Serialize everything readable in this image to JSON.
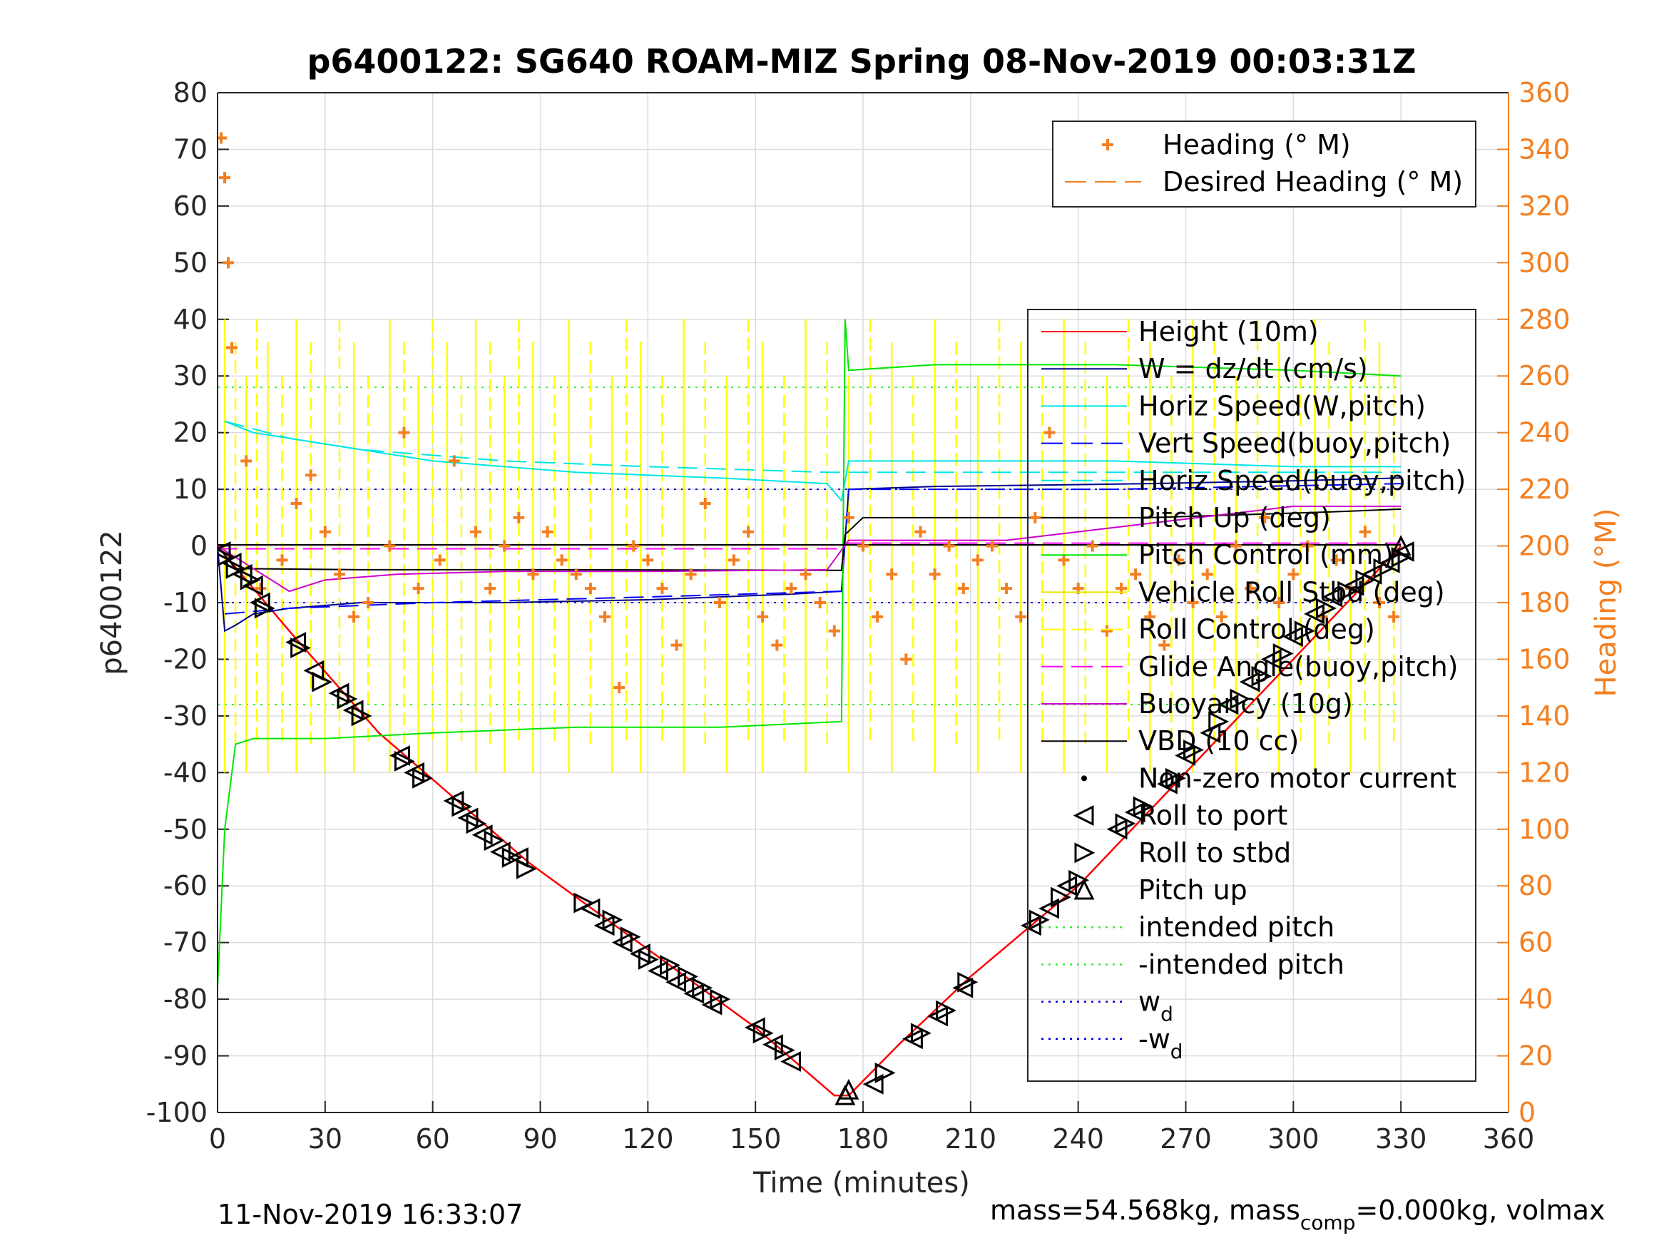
{
  "chart_data": {
    "type": "line",
    "title": "p6400122: SG640 ROAM-MIZ Spring 08-Nov-2019 00:03:31Z",
    "xlabel": "Time (minutes)",
    "ylabel_left": "p6400122",
    "ylabel_right": "Heading (°M)",
    "xlim": [
      0,
      360
    ],
    "ylim_left": [
      -100,
      80
    ],
    "ylim_right": [
      0,
      360
    ],
    "grid": true,
    "xticks": [
      "0",
      "30",
      "60",
      "90",
      "120",
      "150",
      "180",
      "210",
      "240",
      "270",
      "300",
      "330",
      "360"
    ],
    "yticks_left": [
      "-100",
      "-90",
      "-80",
      "-70",
      "-60",
      "-50",
      "-40",
      "-30",
      "-20",
      "-10",
      "0",
      "10",
      "20",
      "30",
      "40",
      "50",
      "60",
      "70",
      "80"
    ],
    "yticks_right": [
      "0",
      "20",
      "40",
      "60",
      "80",
      "100",
      "120",
      "140",
      "160",
      "180",
      "200",
      "220",
      "240",
      "260",
      "280",
      "300",
      "320",
      "340",
      "360"
    ],
    "legend_top": [
      {
        "label": "Heading (° M)",
        "color": "#f47f20",
        "style": "marker-plus"
      },
      {
        "label": "Desired Heading (° M)",
        "color": "#f47f20",
        "style": "dashed"
      }
    ],
    "legend_main": [
      {
        "label": "Height (10m)",
        "color": "#ff0000",
        "style": "solid"
      },
      {
        "label": "W = dz/dt (cm/s)",
        "color": "#00008b",
        "style": "solid"
      },
      {
        "label": "Horiz Speed(W,pitch)",
        "color": "#00e5e5",
        "style": "solid"
      },
      {
        "label": "Vert Speed(buoy,pitch)",
        "color": "#0000ff",
        "style": "dashed"
      },
      {
        "label": "Horiz Speed(buoy,pitch)",
        "color": "#00e5e5",
        "style": "dashed"
      },
      {
        "label": "Pitch Up (deg)",
        "color": "#000000",
        "style": "solid"
      },
      {
        "label": "Pitch Control (mm)",
        "color": "#00e600",
        "style": "solid"
      },
      {
        "label": "Vehicle Roll Stbd (deg)",
        "color": "#e6e600",
        "style": "solid"
      },
      {
        "label": "Roll Control (deg)",
        "color": "#ffff00",
        "style": "dashed"
      },
      {
        "label": "Glide Angle(buoy,pitch)",
        "color": "#ff00ff",
        "style": "dashed"
      },
      {
        "label": "Buoyancy (10g)",
        "color": "#cc00cc",
        "style": "solid"
      },
      {
        "label": "VBD (10 cc)",
        "color": "#000000",
        "style": "solid"
      },
      {
        "label": "Non-zero motor current",
        "color": "#000000",
        "style": "dot"
      },
      {
        "label": "Roll to port",
        "color": "#000000",
        "style": "tri-left"
      },
      {
        "label": "Roll to stbd",
        "color": "#000000",
        "style": "tri-right"
      },
      {
        "label": "Pitch up",
        "color": "#000000",
        "style": "tri-up"
      },
      {
        "label": "intended pitch",
        "color": "#33ee33",
        "style": "dotted"
      },
      {
        "label": "-intended pitch",
        "color": "#33ee33",
        "style": "dotted"
      },
      {
        "label": "w",
        "sub": "d",
        "color": "#0000cc",
        "style": "dotted"
      },
      {
        "label": "-w",
        "sub": "d",
        "color": "#0000cc",
        "style": "dotted"
      }
    ],
    "reference_lines": {
      "intended_pitch": 28,
      "w_d": 10
    },
    "series": [
      {
        "name": "Height (10m)",
        "color": "#ff0000",
        "x": [
          0,
          20,
          45,
          87,
          150,
          172,
          176,
          190,
          210,
          240,
          270,
          300,
          330
        ],
        "y": [
          0,
          -15,
          -33,
          -56,
          -85,
          -97,
          -97,
          -88,
          -76,
          -60,
          -40,
          -20,
          0
        ]
      },
      {
        "name": "W = dz/dt (cm/s)",
        "color": "#00008b",
        "x": [
          0,
          2,
          5,
          10,
          20,
          40,
          80,
          120,
          160,
          174,
          176,
          200,
          260,
          300,
          330
        ],
        "y": [
          0,
          -15,
          -14,
          -12,
          -11,
          -10,
          -10,
          -9.5,
          -8.5,
          -8,
          10,
          10.5,
          11,
          11.5,
          12
        ]
      },
      {
        "name": "Horiz Speed(W,pitch)",
        "color": "#00e5e5",
        "x": [
          2,
          10,
          20,
          40,
          60,
          100,
          140,
          170,
          174,
          176,
          200,
          250,
          300,
          330
        ],
        "y": [
          22,
          20,
          19,
          17,
          15,
          13,
          12,
          11,
          8,
          15,
          15,
          15,
          14,
          14
        ]
      },
      {
        "name": "Horiz Speed(buoy,pitch)",
        "color": "#00e5e5",
        "x": [
          2,
          20,
          40,
          80,
          120,
          170,
          176,
          250,
          330
        ],
        "y": [
          22,
          19,
          17,
          15,
          14,
          13,
          13,
          13,
          13
        ]
      },
      {
        "name": "Vert Speed(buoy,pitch)",
        "color": "#0000ff",
        "x": [
          2,
          20,
          60,
          120,
          174,
          176,
          250,
          330
        ],
        "y": [
          -12,
          -11,
          -10,
          -9,
          -8,
          10,
          10,
          11
        ]
      },
      {
        "name": "Pitch Control (mm)",
        "color": "#00e600",
        "x": [
          0,
          2,
          5,
          10,
          30,
          60,
          100,
          140,
          174,
          175,
          176,
          200,
          250,
          300,
          330
        ],
        "y": [
          -78,
          -50,
          -35,
          -34,
          -34,
          -33,
          -32,
          -32,
          -31,
          40,
          31,
          32,
          32,
          31,
          30
        ]
      },
      {
        "name": "Pitch Up (deg)",
        "color": "#000000",
        "x": [
          0,
          5,
          40,
          100,
          174,
          175,
          180,
          260,
          310,
          330
        ],
        "y": [
          0,
          -4,
          -4.2,
          -4.2,
          -4.3,
          2,
          5,
          5,
          6,
          6.5
        ]
      },
      {
        "name": "Buoyancy (10g)",
        "color": "#cc00cc",
        "x": [
          0,
          20,
          30,
          50,
          80,
          120,
          170,
          176,
          220,
          300,
          330
        ],
        "y": [
          0,
          -8,
          -6,
          -5,
          -4.5,
          -4.5,
          -4.2,
          1,
          1,
          7,
          7
        ]
      },
      {
        "name": "Glide Angle(buoy,pitch)",
        "color": "#ff00ff",
        "x": [
          0,
          20,
          174,
          176,
          330
        ],
        "y": [
          -0.5,
          -0.5,
          -0.5,
          0.5,
          0.5
        ]
      },
      {
        "name": "VBD (10 cc)",
        "color": "#000000",
        "x": [
          0,
          20,
          174,
          330
        ],
        "y": [
          0.2,
          0.2,
          0.2,
          0.2
        ]
      },
      {
        "name": "Heading (° M)",
        "color": "#f47f20",
        "axis": "right",
        "x": [
          1,
          2,
          3,
          4,
          8,
          12,
          18,
          22,
          26,
          30,
          34,
          38,
          42,
          48,
          52,
          56,
          62,
          66,
          72,
          76,
          80,
          84,
          88,
          92,
          96,
          100,
          104,
          108,
          112,
          116,
          120,
          124,
          128,
          132,
          136,
          140,
          144,
          148,
          152,
          156,
          160,
          164,
          168,
          172,
          176,
          180,
          184,
          188,
          192,
          196,
          200,
          204,
          208,
          212,
          216,
          220,
          224,
          228,
          232,
          236,
          240,
          244,
          248,
          252,
          256,
          260,
          264,
          268,
          272,
          276,
          280,
          284,
          288,
          292,
          296,
          300,
          304,
          308,
          312,
          316,
          320,
          324,
          328
        ],
        "y": [
          344,
          330,
          300,
          270,
          230,
          185,
          195,
          215,
          225,
          205,
          190,
          175,
          180,
          200,
          240,
          185,
          195,
          230,
          205,
          185,
          200,
          210,
          190,
          205,
          195,
          190,
          185,
          175,
          150,
          200,
          195,
          185,
          165,
          190,
          215,
          180,
          195,
          205,
          175,
          165,
          185,
          190,
          180,
          170,
          210,
          200,
          175,
          190,
          160,
          205,
          190,
          200,
          185,
          195,
          200,
          185,
          175,
          210,
          240,
          195,
          185,
          200,
          170,
          185,
          190,
          175,
          165,
          195,
          180,
          190,
          175,
          200,
          185,
          210,
          180,
          190,
          200,
          175,
          195,
          185,
          205,
          180,
          175
        ]
      }
    ],
    "roll_port_markers": {
      "x": [
        1,
        4,
        7,
        10,
        12,
        22,
        27,
        34,
        38,
        51,
        55,
        66,
        70,
        74,
        79,
        84,
        104,
        108,
        113,
        118,
        123,
        128,
        133,
        138,
        150,
        155,
        160,
        183,
        194,
        201,
        208,
        227,
        232,
        237,
        251,
        256,
        265,
        270,
        277,
        282,
        288,
        294,
        300,
        306,
        311,
        317,
        322,
        327,
        331
      ],
      "y": [
        -1,
        -3,
        -5,
        -7,
        -10,
        -17,
        -22,
        -26,
        -29,
        -37,
        -40,
        -45,
        -48,
        -51,
        -54,
        -55,
        -64,
        -67,
        -70,
        -72,
        -75,
        -77,
        -79,
        -81,
        -85,
        -88,
        -91,
        -95,
        -87,
        -83,
        -78,
        -67,
        -64,
        -60,
        -50,
        -47,
        -42,
        -37,
        -33,
        -28,
        -24,
        -20,
        -16,
        -12,
        -9,
        -7,
        -5,
        -3,
        -1
      ]
    },
    "roll_stbd_markers": {
      "x": [
        2,
        5,
        9,
        13,
        23,
        29,
        36,
        40,
        52,
        57,
        68,
        72,
        77,
        82,
        86,
        102,
        110,
        115,
        120,
        126,
        131,
        135,
        140,
        152,
        158,
        186,
        196,
        203,
        209,
        229,
        235,
        240,
        253,
        258,
        267,
        272,
        279,
        285,
        291,
        297,
        303,
        309,
        315,
        320,
        325,
        330
      ],
      "y": [
        -2,
        -4,
        -6,
        -11,
        -18,
        -24,
        -27,
        -30,
        -38,
        -41,
        -46,
        -49,
        -52,
        -55,
        -57,
        -63,
        -66,
        -69,
        -73,
        -74,
        -76,
        -78,
        -80,
        -86,
        -89,
        -93,
        -86,
        -82,
        -77,
        -66,
        -62,
        -59,
        -49,
        -46,
        -41,
        -36,
        -31,
        -27,
        -23,
        -19,
        -15,
        -11,
        -8,
        -6,
        -4,
        -2
      ]
    },
    "pitch_up_markers": {
      "x": [
        175,
        176,
        330
      ],
      "y": [
        -97,
        -96,
        0
      ]
    }
  },
  "footer": {
    "timestamp": "11-Nov-2019 16:33:07",
    "mass_text": "mass=54.568kg, mass",
    "mass_sub": "comp",
    "mass_rest": "=0.000kg, volmax"
  }
}
